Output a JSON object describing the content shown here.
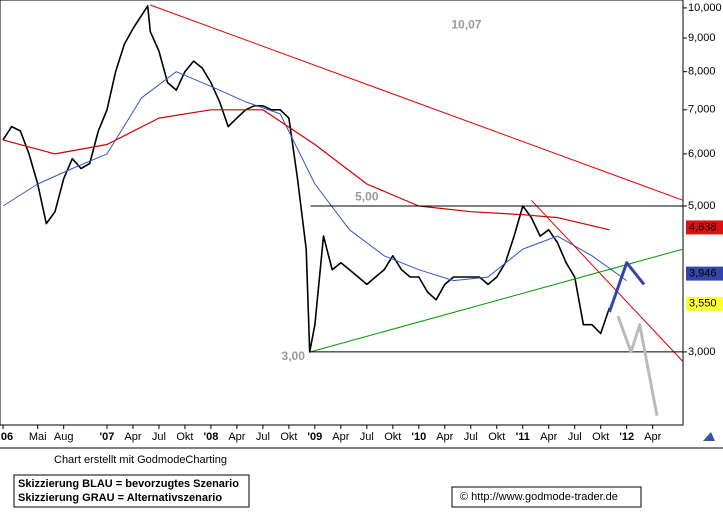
{
  "chart_data": {
    "type": "line",
    "log_scale": true,
    "ylim": [
      2.323,
      10.28
    ],
    "yticks": [
      {
        "value": 10,
        "label": "10,000"
      },
      {
        "value": 9,
        "label": "9,000"
      },
      {
        "value": 8,
        "label": "8,000"
      },
      {
        "value": 7,
        "label": "7,000"
      },
      {
        "value": 6,
        "label": "6,000"
      },
      {
        "value": 5,
        "label": "5,000"
      },
      {
        "value": 3,
        "label": "3,000"
      }
    ],
    "xlim": [
      -0.35,
      78.5
    ],
    "xticks": [
      {
        "value": 0,
        "label": "06"
      },
      {
        "value": 4,
        "label": "Mai"
      },
      {
        "value": 7,
        "label": "Aug"
      },
      {
        "value": 12,
        "label": "'07"
      },
      {
        "value": 15,
        "label": "Apr"
      },
      {
        "value": 18,
        "label": "Jul"
      },
      {
        "value": 21,
        "label": "Okt"
      },
      {
        "value": 24,
        "label": "'08"
      },
      {
        "value": 27,
        "label": "Apr"
      },
      {
        "value": 30,
        "label": "Jul"
      },
      {
        "value": 33,
        "label": "Okt"
      },
      {
        "value": 36,
        "label": "'09"
      },
      {
        "value": 39,
        "label": "Apr"
      },
      {
        "value": 42,
        "label": "Jul"
      },
      {
        "value": 45,
        "label": "Okt"
      },
      {
        "value": 48,
        "label": "'10"
      },
      {
        "value": 51,
        "label": "Apr"
      },
      {
        "value": 54,
        "label": "Jul"
      },
      {
        "value": 57,
        "label": "Okt"
      },
      {
        "value": 60,
        "label": "'11"
      },
      {
        "value": 63,
        "label": "Apr"
      },
      {
        "value": 66,
        "label": "Jul"
      },
      {
        "value": 69,
        "label": "Okt"
      },
      {
        "value": 72,
        "label": "'12"
      },
      {
        "value": 75,
        "label": "Apr"
      }
    ],
    "series": [
      {
        "color": "#000000",
        "width": 1.6,
        "x": [
          0,
          1,
          2,
          3,
          4,
          5,
          6,
          7,
          8,
          9,
          10,
          11,
          12,
          13,
          14,
          15,
          16.7,
          17,
          18,
          19,
          20,
          21,
          22,
          23,
          24,
          25,
          26,
          27,
          28,
          29,
          30,
          31,
          32,
          33,
          34,
          35,
          35.4,
          36,
          37,
          38,
          39,
          40,
          41,
          42,
          43,
          44,
          45,
          46,
          47,
          48,
          49,
          50,
          51,
          52,
          53,
          54,
          55,
          56,
          57,
          58,
          59,
          60,
          61,
          62,
          63,
          64,
          65,
          66,
          67,
          68,
          69,
          70
        ],
        "values": [
          6.3,
          6.6,
          6.5,
          6.0,
          5.4,
          4.7,
          4.9,
          5.5,
          5.9,
          5.7,
          5.8,
          6.5,
          7.0,
          8.0,
          8.8,
          9.3,
          10.07,
          9.2,
          8.6,
          7.7,
          7.5,
          8.0,
          8.3,
          8.1,
          7.7,
          7.2,
          6.6,
          6.8,
          7.0,
          7.1,
          7.1,
          7.0,
          7.0,
          6.8,
          5.5,
          4.3,
          3.0,
          3.3,
          4.5,
          4.0,
          4.1,
          4.0,
          3.9,
          3.8,
          3.9,
          4.0,
          4.2,
          4.0,
          3.9,
          3.9,
          3.7,
          3.6,
          3.8,
          3.9,
          3.9,
          3.9,
          3.9,
          3.8,
          3.9,
          4.1,
          4.5,
          5.0,
          4.8,
          4.5,
          4.6,
          4.4,
          4.1,
          3.9,
          3.3,
          3.3,
          3.2,
          3.5
        ]
      },
      {
        "color": "#3355cc",
        "width": 1,
        "x": [
          0,
          4,
          8,
          12,
          16,
          20,
          24,
          28,
          32,
          36,
          40,
          44,
          48,
          52,
          56,
          60,
          64,
          68,
          72
        ],
        "values": [
          5.0,
          5.4,
          5.7,
          6.0,
          7.3,
          8.0,
          7.6,
          7.2,
          6.9,
          5.4,
          4.6,
          4.2,
          4.0,
          3.85,
          3.9,
          4.3,
          4.5,
          4.2,
          3.85
        ]
      },
      {
        "color": "#cc0000",
        "width": 1.2,
        "x": [
          0,
          6,
          12,
          18,
          24,
          30,
          36,
          42,
          48,
          54,
          60,
          64,
          70
        ],
        "values": [
          6.3,
          6.0,
          6.2,
          6.8,
          7.0,
          7.0,
          6.2,
          5.4,
          5.0,
          4.9,
          4.85,
          4.8,
          4.6
        ]
      },
      {
        "color": "#dd0000",
        "width": 1,
        "x": [
          17,
          78.5
        ],
        "values": [
          10.1,
          5.1
        ]
      },
      {
        "color": "#dd0000",
        "width": 1,
        "x": [
          61,
          78.5
        ],
        "values": [
          5.1,
          2.9
        ]
      },
      {
        "color": "#009900",
        "width": 1,
        "x": [
          35.5,
          78.5
        ],
        "values": [
          3.0,
          4.3
        ]
      },
      {
        "color": "#000000",
        "width": 1,
        "x": [
          35.5,
          78.5
        ],
        "values": [
          5.0,
          5.0
        ]
      },
      {
        "color": "#000000",
        "width": 1,
        "x": [
          35.5,
          78.5
        ],
        "values": [
          3.0,
          3.0
        ]
      },
      {
        "color": "#3344aa",
        "width": 3,
        "x": [
          70,
          72,
          74
        ],
        "values": [
          3.45,
          4.1,
          3.8
        ]
      },
      {
        "color": "#bbbbbb",
        "width": 3,
        "x": [
          71,
          72.5,
          73.5,
          75.5
        ],
        "values": [
          3.4,
          3.0,
          3.3,
          2.4
        ]
      }
    ],
    "price_tags": [
      {
        "value": 4.638,
        "label": "4,638",
        "color": "#dd1111",
        "text_color": "#ffffff"
      },
      {
        "value": 3.946,
        "label": "3,946",
        "color": "#3344aa",
        "text_color": "#ffffff"
      },
      {
        "value": 3.55,
        "label": "3,550",
        "color": "#ffff33",
        "text_color": "#000000"
      }
    ],
    "annotations": [
      {
        "x": 53.5,
        "y": 9.4,
        "label": "10,07"
      },
      {
        "x": 42,
        "y": 5.15,
        "label": "5,00"
      },
      {
        "x": 33.5,
        "y": 2.95,
        "label": "3,00"
      }
    ],
    "credit": "Chart erstellt mit GodmodeCharting",
    "legend_lines": [
      "Skizzierung BLAU = bevorzugtes Szenario",
      "Skizzierung GRAU = Alternativszenario"
    ],
    "copyright": "© http://www.godmode-trader.de"
  }
}
